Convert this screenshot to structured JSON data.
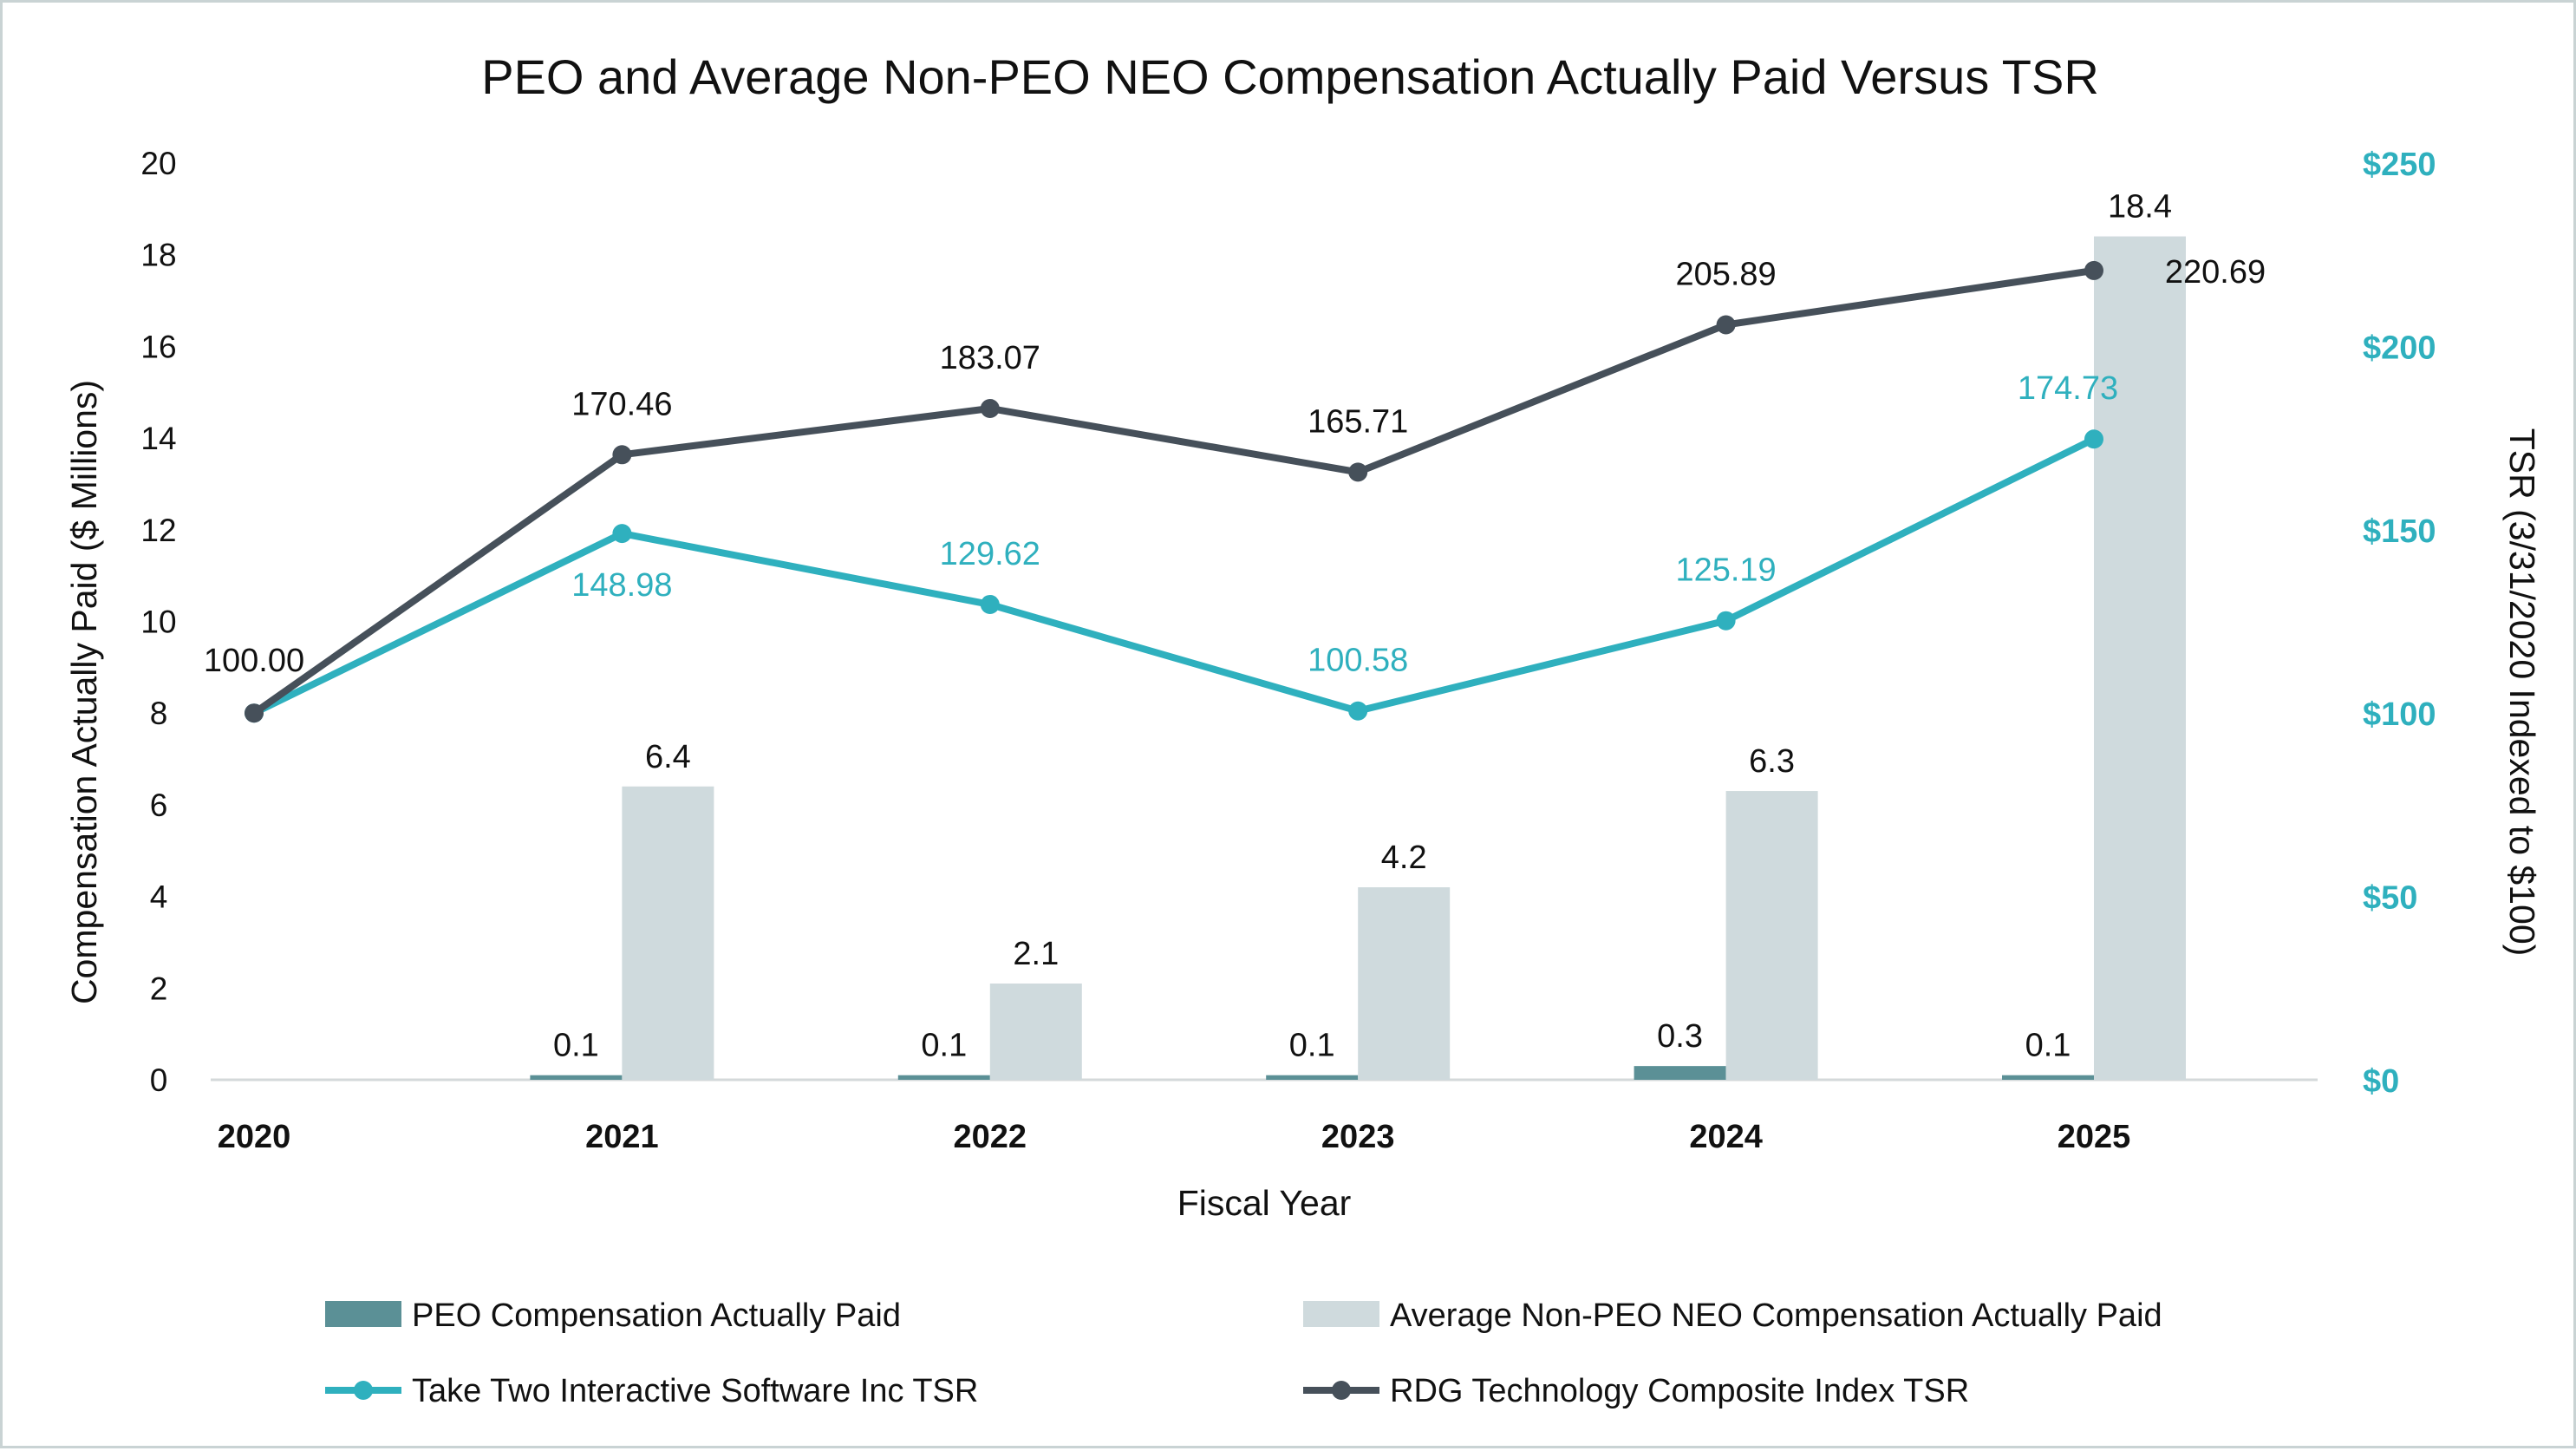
{
  "chart_data": {
    "type": "bar",
    "title": "PEO and Average Non-PEO NEO Compensation Actually Paid Versus TSR",
    "xlabel": "Fiscal Year",
    "ylabel": "Compensation Actually Paid ($ Millions)",
    "y2label": "TSR (3/31/2020 Indexed to $100)",
    "categories": [
      "2020",
      "2021",
      "2022",
      "2023",
      "2024",
      "2025"
    ],
    "ylim": [
      0,
      20
    ],
    "y_ticks": [
      "0",
      "2",
      "4",
      "6",
      "8",
      "10",
      "12",
      "14",
      "16",
      "18",
      "20"
    ],
    "y2lim": [
      0,
      250
    ],
    "y2_ticks": [
      "$0",
      "$50",
      "$100",
      "$150",
      "$200",
      "$250"
    ],
    "grid": false,
    "legend_position": "bottom",
    "series": [
      {
        "name": "PEO Compensation Actually Paid",
        "kind": "bar",
        "axis": "left",
        "color": "#5b9096",
        "values": [
          null,
          0.1,
          0.1,
          0.1,
          0.3,
          0.1
        ],
        "labels": [
          "",
          "0.1",
          "0.1",
          "0.1",
          "0.3",
          "0.1"
        ]
      },
      {
        "name": "Average Non-PEO NEO Compensation Actually Paid",
        "kind": "bar",
        "axis": "left",
        "color": "#cfdadd",
        "values": [
          null,
          6.4,
          2.1,
          4.2,
          6.3,
          18.4
        ],
        "labels": [
          "",
          "6.4",
          "2.1",
          "4.2",
          "6.3",
          "18.4"
        ]
      },
      {
        "name": "Take Two Interactive Software Inc TSR",
        "kind": "line",
        "axis": "right",
        "color": "#2fb0be",
        "values": [
          100.0,
          148.98,
          129.62,
          100.58,
          125.19,
          174.73
        ],
        "labels": [
          "",
          "148.98",
          "129.62",
          "100.58",
          "125.19",
          "174.73"
        ]
      },
      {
        "name": "RDG Technology Composite Index TSR",
        "kind": "line",
        "axis": "right",
        "color": "#46505a",
        "values": [
          100.0,
          170.46,
          183.07,
          165.71,
          205.89,
          220.69
        ],
        "labels": [
          "100.00",
          "170.46",
          "183.07",
          "165.71",
          "205.89",
          "220.69"
        ]
      }
    ]
  }
}
